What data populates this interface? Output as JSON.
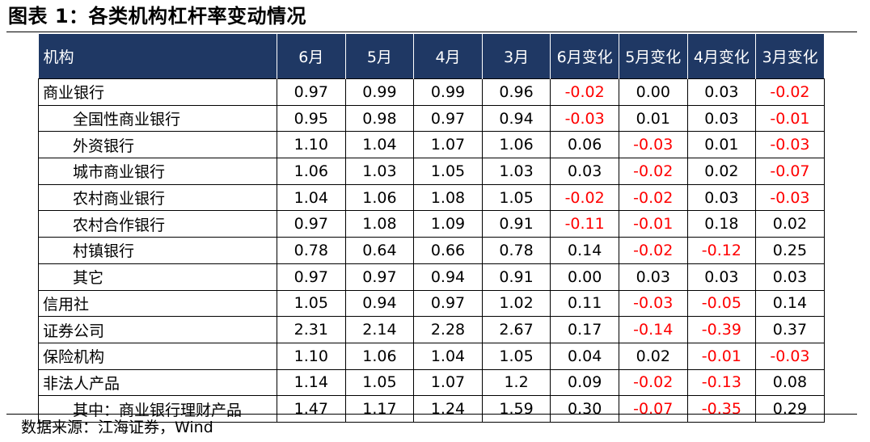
{
  "title": "图表 1：各类机构杠杆率变动情况",
  "table": {
    "headers": [
      "机构",
      "6月",
      "5月",
      "4月",
      "3月",
      "6月变化",
      "5月变化",
      "4月变化",
      "3月变化"
    ],
    "rows": [
      {
        "name": "商业银行",
        "indent": false,
        "values": [
          "0.97",
          "0.99",
          "0.99",
          "0.96",
          "-0.02",
          "0.00",
          "0.03",
          "-0.02"
        ]
      },
      {
        "name": "全国性商业银行",
        "indent": true,
        "values": [
          "0.95",
          "0.98",
          "0.97",
          "0.94",
          "-0.03",
          "0.01",
          "0.03",
          "-0.01"
        ]
      },
      {
        "name": "外资银行",
        "indent": true,
        "values": [
          "1.10",
          "1.04",
          "1.07",
          "1.06",
          "0.06",
          "-0.03",
          "0.01",
          "-0.03"
        ]
      },
      {
        "name": "城市商业银行",
        "indent": true,
        "values": [
          "1.06",
          "1.03",
          "1.05",
          "1.03",
          "0.03",
          "-0.02",
          "0.02",
          "-0.07"
        ]
      },
      {
        "name": "农村商业银行",
        "indent": true,
        "values": [
          "1.04",
          "1.06",
          "1.08",
          "1.05",
          "-0.02",
          "-0.02",
          "0.03",
          "-0.03"
        ]
      },
      {
        "name": "农村合作银行",
        "indent": true,
        "values": [
          "0.97",
          "1.08",
          "1.09",
          "0.91",
          "-0.11",
          "-0.01",
          "0.18",
          "0.02"
        ]
      },
      {
        "name": "村镇银行",
        "indent": true,
        "values": [
          "0.78",
          "0.64",
          "0.66",
          "0.78",
          "0.14",
          "-0.02",
          "-0.12",
          "0.25"
        ]
      },
      {
        "name": "其它",
        "indent": true,
        "values": [
          "0.97",
          "0.97",
          "0.94",
          "0.91",
          "0.00",
          "0.03",
          "0.03",
          "0.03"
        ]
      },
      {
        "name": "信用社",
        "indent": false,
        "values": [
          "1.05",
          "0.94",
          "0.97",
          "1.02",
          "0.11",
          "-0.03",
          "-0.05",
          "0.14"
        ]
      },
      {
        "name": "证券公司",
        "indent": false,
        "values": [
          "2.31",
          "2.14",
          "2.28",
          "2.67",
          "0.17",
          "-0.14",
          "-0.39",
          "0.37"
        ]
      },
      {
        "name": "保险机构",
        "indent": false,
        "values": [
          "1.10",
          "1.06",
          "1.04",
          "1.05",
          "0.04",
          "0.02",
          "-0.01",
          "-0.03"
        ]
      },
      {
        "name": "非法人产品",
        "indent": false,
        "values": [
          "1.14",
          "1.05",
          "1.07",
          "1.2",
          "0.09",
          "-0.02",
          "-0.13",
          "0.08"
        ]
      },
      {
        "name": "其中：商业银行理财产品",
        "indent": true,
        "values": [
          "1.47",
          "1.17",
          "1.24",
          "1.59",
          "0.30",
          "-0.07",
          "-0.35",
          "0.29"
        ]
      }
    ]
  },
  "colors": {
    "header_bg": "#1f3864",
    "header_text": "#ffffff",
    "negative": "#ff0000"
  },
  "source": "数据来源：江海证券，Wind"
}
